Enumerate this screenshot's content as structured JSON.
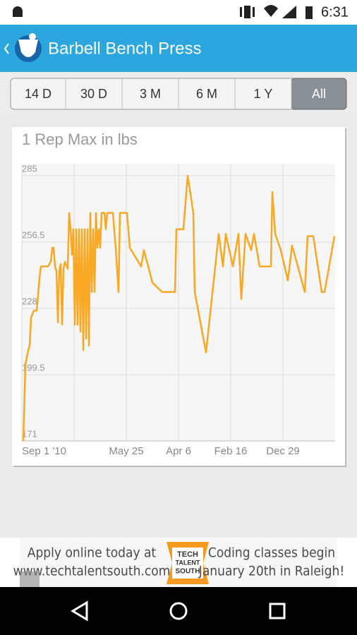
{
  "status_bar": {
    "time": "6:31"
  },
  "app_bar": {
    "title": "Barbell Bench Press"
  },
  "tabs": [
    "14 D",
    "30 D",
    "3 M",
    "6 M",
    "1 Y",
    "All"
  ],
  "chart_data": {
    "type": "line",
    "title": "1 Rep Max in lbs",
    "color": "#f8a823",
    "grid": true,
    "xlim": [
      0,
      444
    ],
    "ylim": [
      171,
      290
    ],
    "yticks": [
      171,
      199.5,
      228,
      256.5,
      285
    ],
    "xticks": [
      {
        "value": 0,
        "label": "Sep 1 '10"
      },
      {
        "value": 74,
        "label": null
      },
      {
        "value": 148,
        "label": "May 25"
      },
      {
        "value": 222,
        "label": "Apr 6"
      },
      {
        "value": 296,
        "label": "Feb 16"
      },
      {
        "value": 370,
        "label": "Dec 29"
      }
    ],
    "x": [
      2,
      5,
      9,
      11,
      13,
      17,
      21,
      25,
      27,
      31,
      37,
      41,
      43,
      45,
      47,
      49,
      51,
      53,
      55,
      57,
      59,
      61,
      65,
      67,
      69,
      71,
      73,
      75,
      77,
      79,
      81,
      83,
      85,
      87,
      89,
      91,
      93,
      95,
      97,
      99,
      101,
      103,
      105,
      107,
      109,
      111,
      113,
      117,
      119,
      121,
      129,
      133,
      137,
      139,
      149,
      153,
      169,
      173,
      185,
      199,
      217,
      219,
      229,
      235,
      243,
      245,
      261,
      279,
      285,
      289,
      299,
      307,
      311,
      317,
      325,
      329,
      337,
      353,
      355,
      359,
      367,
      377,
      383,
      401,
      405,
      413,
      425,
      429,
      443
    ],
    "values": [
      171,
      204,
      210,
      212,
      224,
      227,
      227,
      241,
      246,
      246,
      246,
      248,
      254,
      254,
      246,
      244,
      222,
      244,
      247,
      221,
      245,
      248,
      245,
      269,
      262,
      251,
      262,
      221,
      262,
      221,
      262,
      218,
      262,
      210,
      262,
      215,
      262,
      212,
      269,
      235,
      262,
      235,
      269,
      254,
      262,
      254,
      269,
      269,
      262,
      269,
      269,
      254,
      235,
      269,
      269,
      254,
      246,
      253,
      239,
      235,
      235,
      262,
      262,
      285,
      269,
      235,
      209,
      260,
      246,
      260,
      246,
      260,
      232,
      260,
      253,
      260,
      246,
      246,
      278,
      260,
      253,
      240,
      255,
      235,
      259,
      259,
      235,
      235,
      259
    ]
  },
  "ad": {
    "line1": "Apply online today at",
    "line2": "www.techtalentsouth.com",
    "logo": [
      "TECH",
      "TALENT",
      "SOUTH"
    ],
    "line3": "Coding classes begin",
    "line4": "January 20th in Raleigh!"
  }
}
